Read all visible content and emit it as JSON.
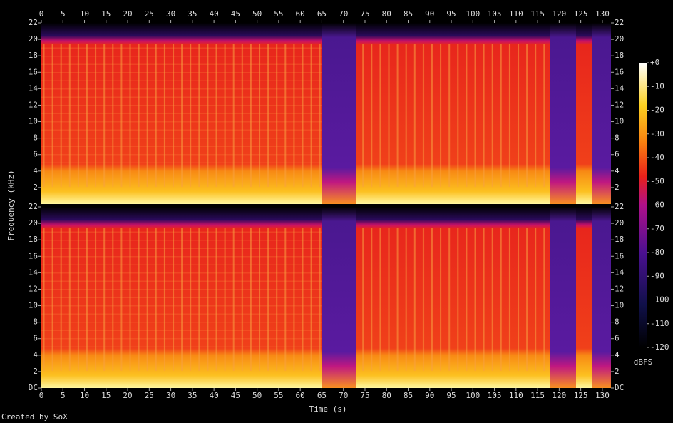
{
  "chart_data": {
    "type": "spectrogram",
    "xlabel": "Time (s)",
    "ylabel": "Frequency (kHz)",
    "xlim": [
      0,
      132
    ],
    "xticks": [
      0,
      5,
      10,
      15,
      20,
      25,
      30,
      35,
      40,
      45,
      50,
      55,
      60,
      65,
      70,
      75,
      80,
      85,
      90,
      95,
      100,
      105,
      110,
      115,
      120,
      125,
      130
    ],
    "panels": [
      {
        "ylim": [
          0,
          22
        ],
        "yticks": [
          2,
          4,
          6,
          8,
          10,
          12,
          14,
          16,
          18,
          20,
          22
        ]
      },
      {
        "ylim": [
          0,
          22
        ],
        "yticks": [
          {
            "value": 0,
            "label": "DC"
          },
          2,
          4,
          6,
          8,
          10,
          12,
          14,
          16,
          18,
          20,
          22
        ]
      }
    ],
    "colorbar": {
      "label": "dBFS",
      "lim": [
        -120,
        0
      ],
      "ticks": [
        {
          "value": 0,
          "label": "+0"
        },
        -10,
        -20,
        -30,
        -40,
        -50,
        -60,
        -70,
        -80,
        -90,
        -100,
        -110,
        -120
      ]
    },
    "footer": "Created by SoX"
  }
}
